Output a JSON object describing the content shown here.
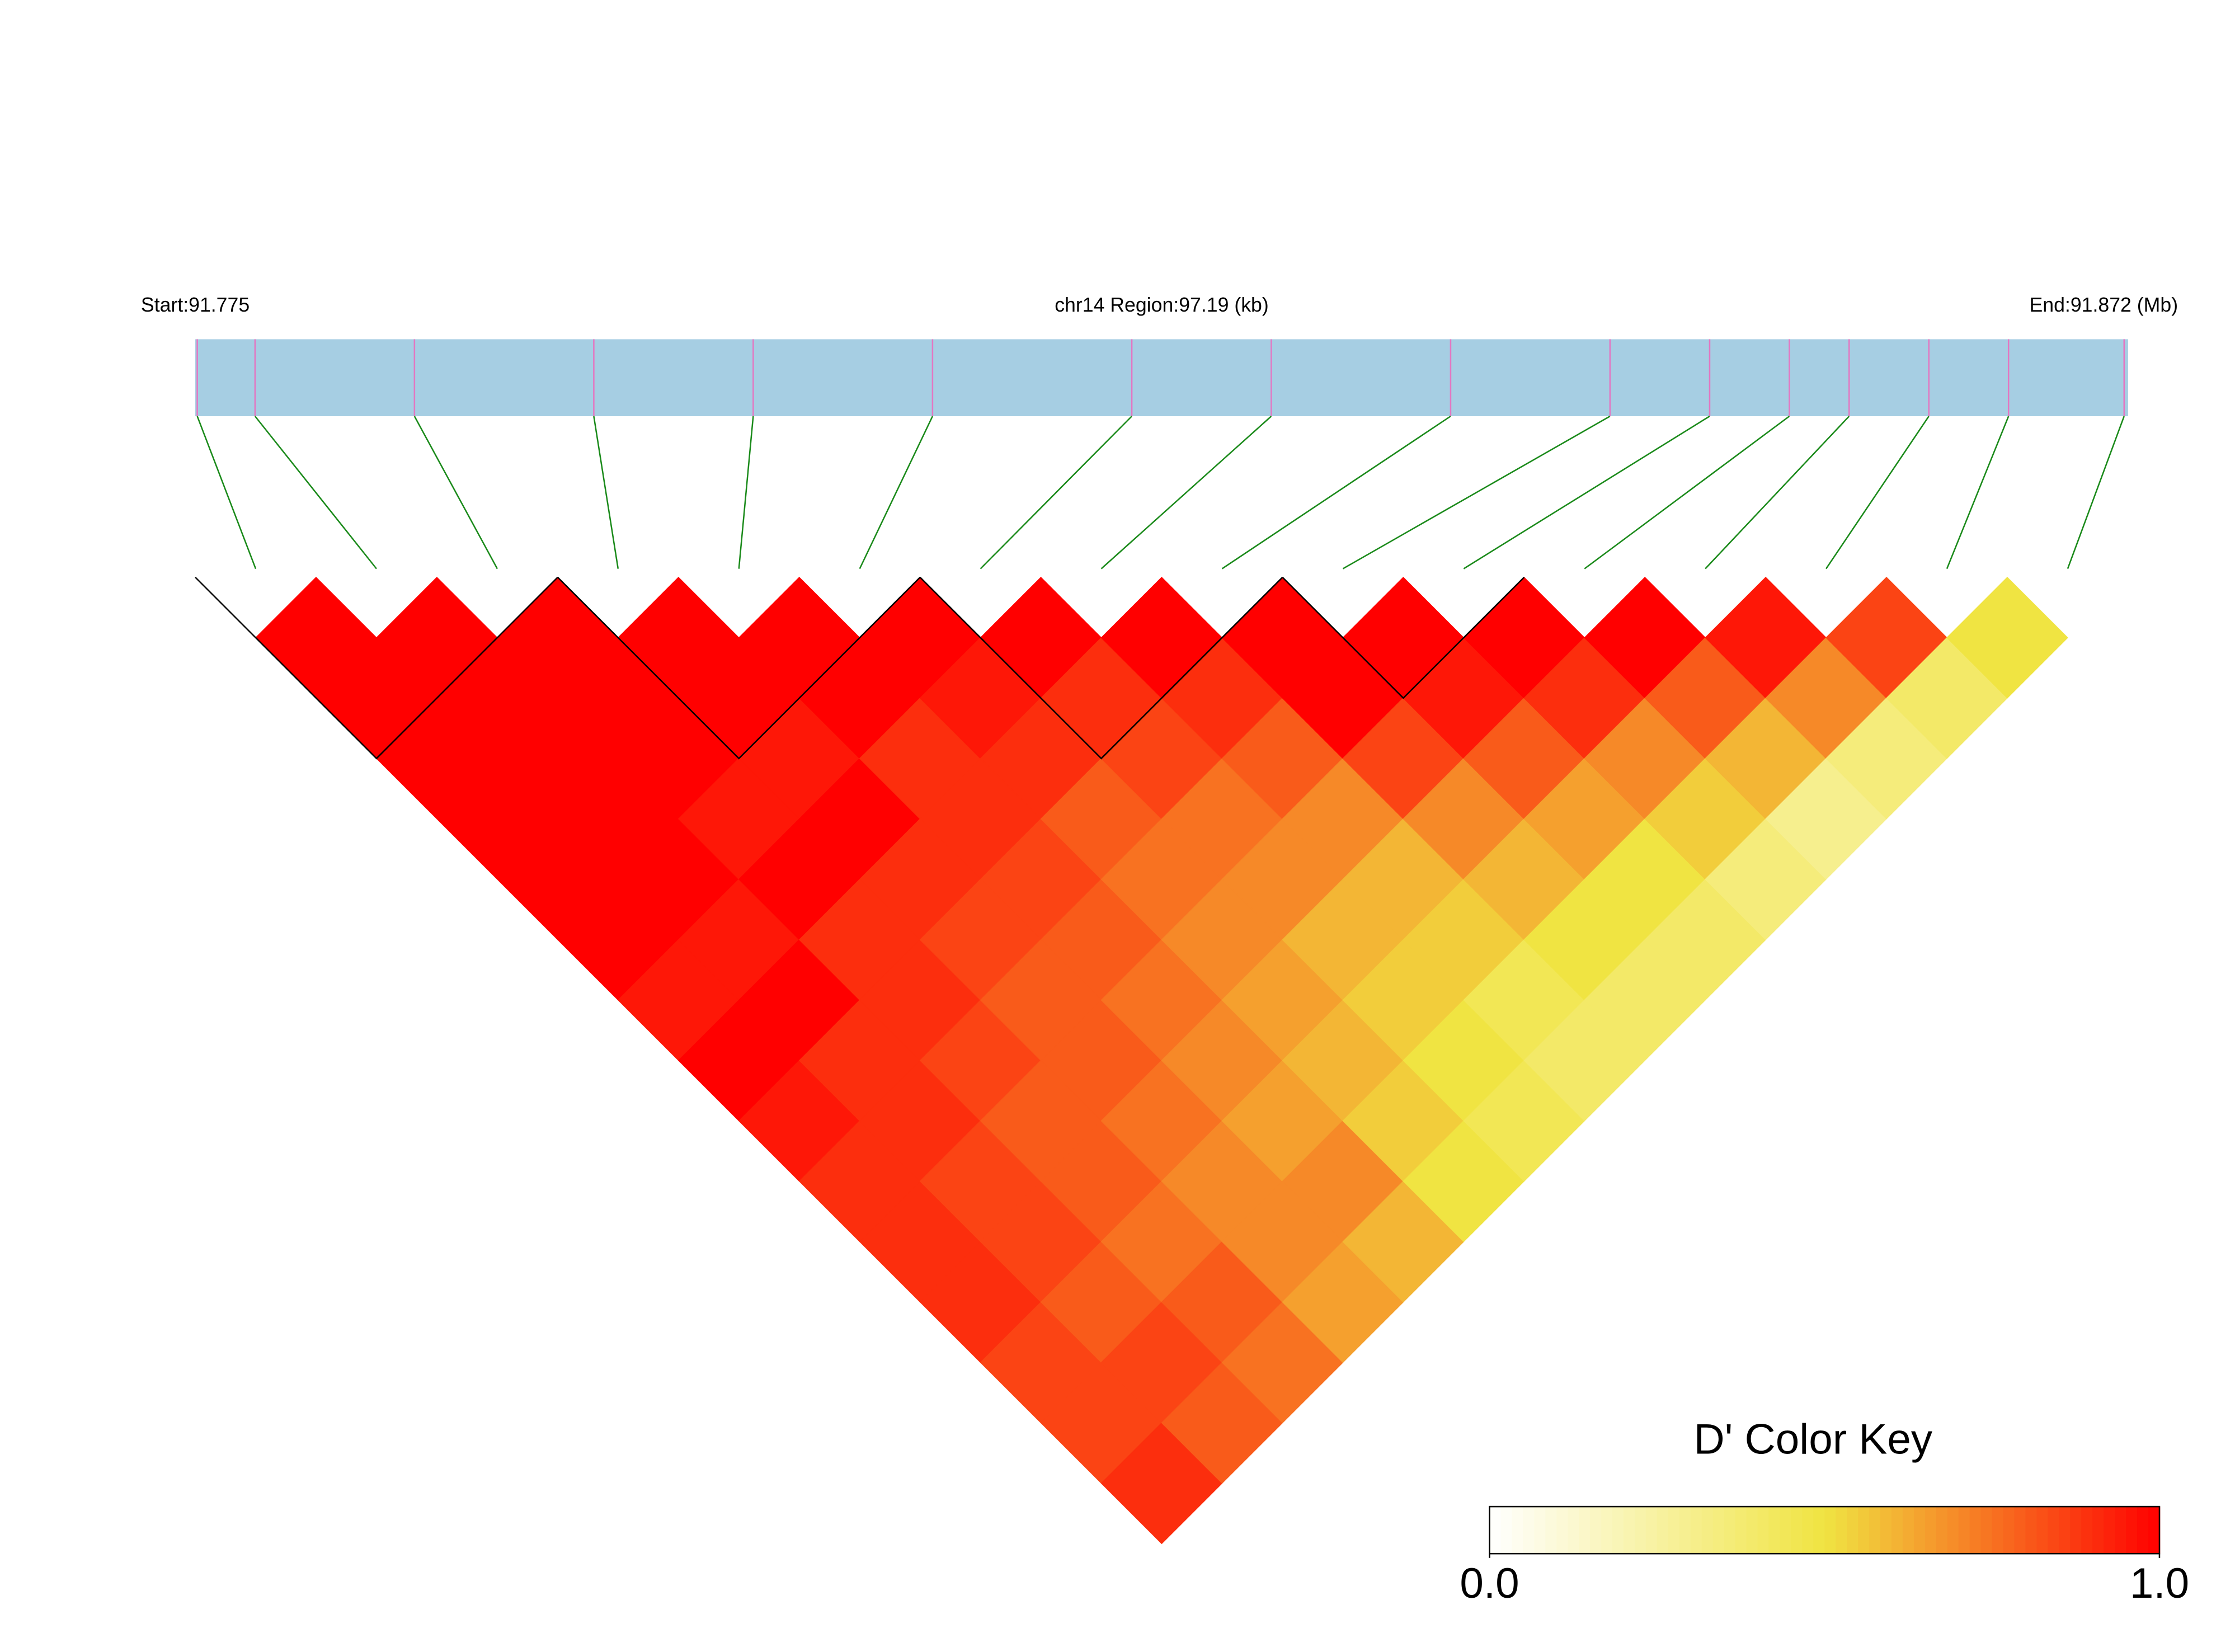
{
  "chart_data": {
    "type": "heatmap",
    "start_label": "Start:91.775",
    "region_label": "chr14 Region:97.19 (kb)",
    "end_label": "End:91.872 (Mb)",
    "xlim": [
      91.775,
      91.872
    ],
    "snp_positions": [
      91.7751,
      91.778,
      91.786,
      91.795,
      91.803,
      91.812,
      91.822,
      91.829,
      91.838,
      91.846,
      91.851,
      91.855,
      91.858,
      91.862,
      91.866,
      91.8718
    ],
    "matrix": [
      [
        1,
        1,
        1,
        1,
        1,
        1,
        0.95,
        1,
        0.95,
        0.9,
        0.9,
        0.9,
        0.85,
        0.85,
        0.9
      ],
      [
        1,
        1,
        1,
        1,
        1,
        0.95,
        1,
        0.9,
        0.9,
        0.85,
        0.85,
        0.8,
        0.85,
        0.8
      ],
      [
        1,
        1,
        1,
        0.95,
        1,
        0.9,
        0.9,
        0.85,
        0.8,
        0.8,
        0.75,
        0.8,
        0.75
      ],
      [
        1,
        1,
        0.95,
        1,
        0.9,
        0.85,
        0.8,
        0.8,
        0.75,
        0.7,
        0.7,
        0.65
      ],
      [
        1,
        1,
        0.9,
        0.9,
        0.85,
        0.8,
        0.75,
        0.7,
        0.65,
        0.7,
        0.6
      ],
      [
        1,
        0.95,
        0.9,
        0.8,
        0.75,
        0.7,
        0.65,
        0.6,
        0.55,
        0.5
      ],
      [
        1,
        0.9,
        0.85,
        0.75,
        0.7,
        0.6,
        0.55,
        0.5,
        0.45
      ],
      [
        1,
        0.9,
        0.8,
        0.7,
        0.6,
        0.55,
        0.45,
        0.4
      ],
      [
        1,
        1,
        0.85,
        0.7,
        0.6,
        0.5,
        0.4
      ],
      [
        1,
        0.95,
        0.8,
        0.65,
        0.5,
        0.4
      ],
      [
        1,
        0.9,
        0.7,
        0.55,
        0.35
      ],
      [
        1,
        0.8,
        0.6,
        0.3
      ],
      [
        0.95,
        0.7,
        0.35
      ],
      [
        0.85,
        0.4
      ],
      [
        0.5
      ]
    ],
    "ld_blocks": [
      [
        0,
        2
      ],
      [
        3,
        5
      ],
      [
        6,
        8
      ],
      [
        9,
        10
      ]
    ],
    "colorscale": [
      [
        0,
        "#ffffff"
      ],
      [
        0.5,
        "#f0e442"
      ],
      [
        1,
        "#ff0000"
      ]
    ],
    "colorbar_title": "D' Color Key",
    "clim": [
      0,
      1
    ],
    "cticks": [
      {
        "value": 0,
        "label": "0.0"
      },
      {
        "value": 1,
        "label": "1.0"
      }
    ],
    "bar_color": "#a6cee3",
    "snp_tick_color": "#e377c2",
    "link_color": "#1a8a1a"
  }
}
